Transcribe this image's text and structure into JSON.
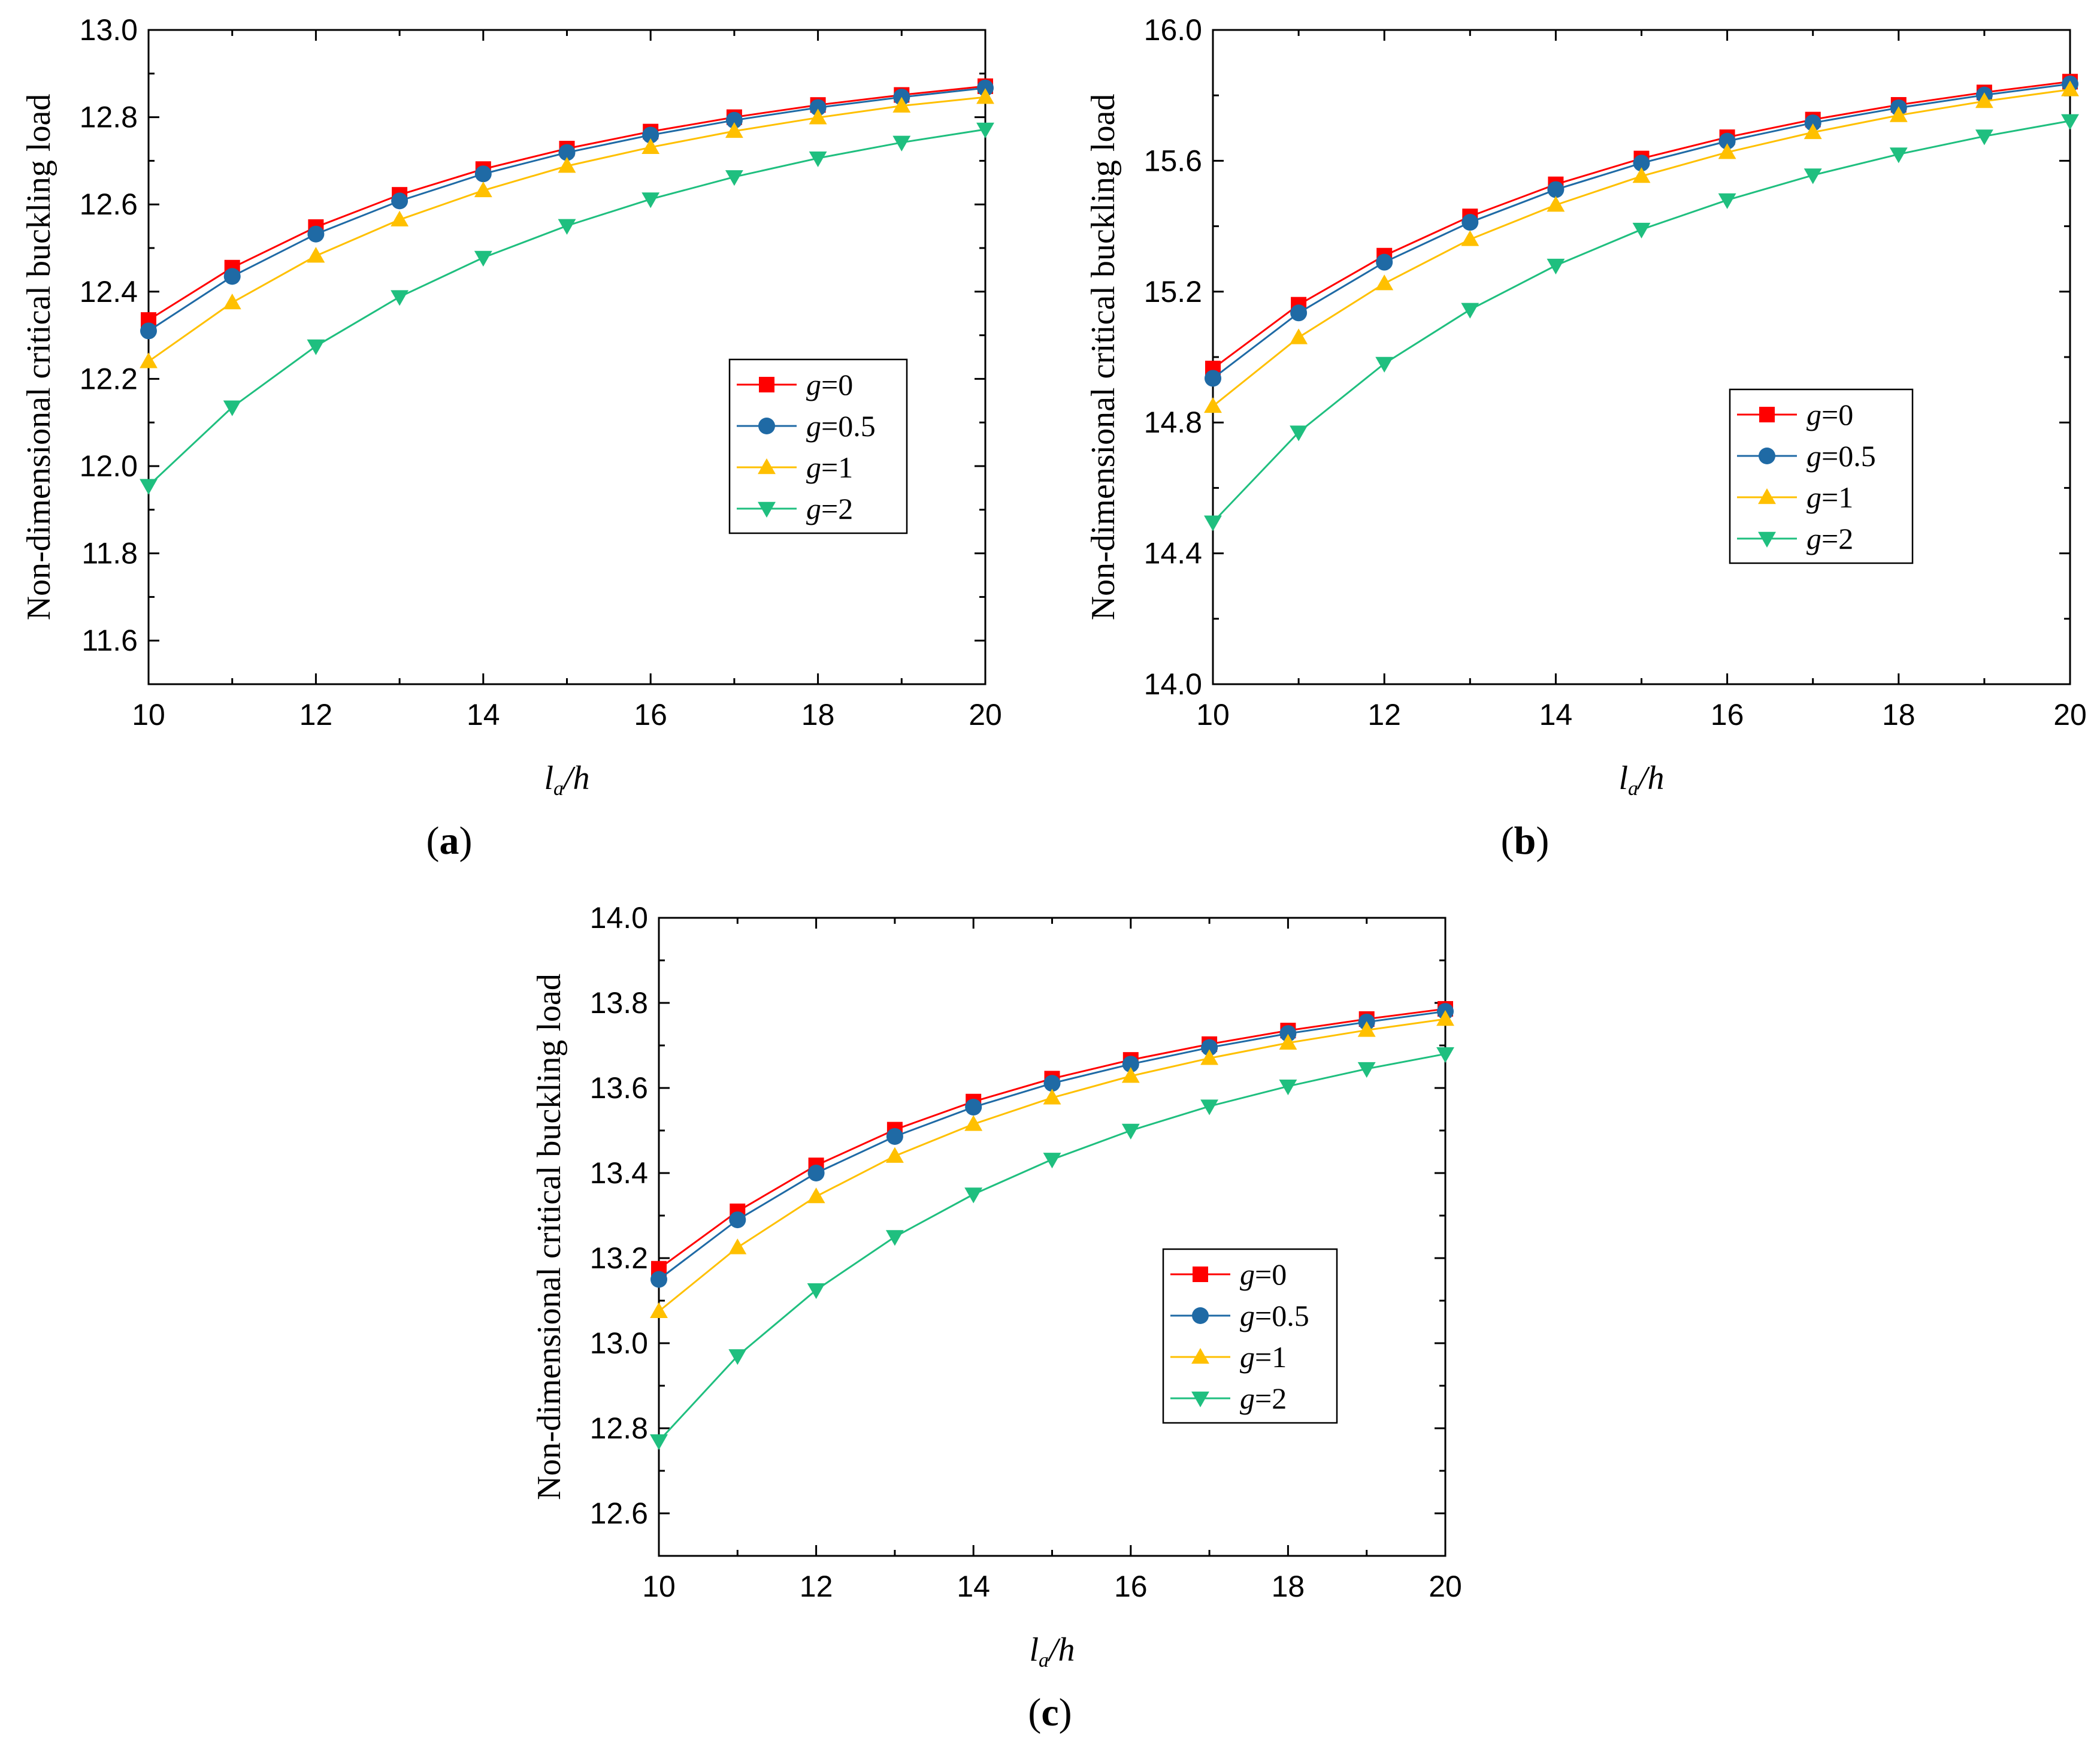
{
  "figure": {
    "panel_labels": [
      "a",
      "b",
      "c"
    ],
    "x_label": {
      "main": "l",
      "subscript": "a",
      "suffix": "/h"
    }
  },
  "colors": {
    "g0": "#ff0000",
    "g0_5": "#1f6aa5",
    "g1": "#ffc000",
    "g2": "#1fbf7f"
  },
  "chart_data": [
    {
      "type": "line",
      "panel": "a",
      "ylabel": "Non-dimensional critical buckling load",
      "xlabel": "la/h",
      "xlim": [
        10,
        20
      ],
      "ylim": [
        11.5,
        13.0
      ],
      "xticks": [
        10,
        12,
        14,
        16,
        18,
        20
      ],
      "yticks": [
        11.6,
        11.8,
        12.0,
        12.2,
        12.4,
        12.6,
        12.8,
        13.0
      ],
      "x": [
        10,
        11,
        12,
        13,
        14,
        15,
        16,
        17,
        18,
        19,
        20
      ],
      "legend_position": "center-right",
      "series": [
        {
          "name": "g=0",
          "prefix": "g",
          "suffix": "=0",
          "marker": "square",
          "color_key": "g0",
          "values": [
            12.335,
            12.455,
            12.548,
            12.622,
            12.681,
            12.728,
            12.767,
            12.8,
            12.828,
            12.851,
            12.871
          ]
        },
        {
          "name": "g=0.5",
          "prefix": "g",
          "suffix": "=0.5",
          "marker": "circle",
          "color_key": "g0_5",
          "values": [
            12.31,
            12.435,
            12.532,
            12.608,
            12.67,
            12.719,
            12.759,
            12.793,
            12.822,
            12.846,
            12.867
          ]
        },
        {
          "name": "g=1",
          "prefix": "g",
          "suffix": "=1",
          "marker": "triangle-up",
          "color_key": "g1",
          "values": [
            12.24,
            12.375,
            12.482,
            12.565,
            12.632,
            12.688,
            12.731,
            12.768,
            12.799,
            12.826,
            12.846
          ]
        },
        {
          "name": "g=2",
          "prefix": "g",
          "suffix": "=2",
          "marker": "triangle-down",
          "color_key": "g2",
          "values": [
            11.955,
            12.135,
            12.275,
            12.388,
            12.478,
            12.551,
            12.612,
            12.663,
            12.706,
            12.742,
            12.772
          ]
        }
      ]
    },
    {
      "type": "line",
      "panel": "b",
      "ylabel": "Non-dimensional critical buckling load",
      "xlabel": "la/h",
      "xlim": [
        10,
        20
      ],
      "ylim": [
        14.0,
        16.0
      ],
      "xticks": [
        10,
        12,
        14,
        16,
        18,
        20
      ],
      "yticks": [
        14.0,
        14.4,
        14.8,
        15.2,
        15.6,
        16.0
      ],
      "x": [
        10,
        11,
        12,
        13,
        14,
        15,
        16,
        17,
        18,
        19,
        20
      ],
      "legend_position": "center-right",
      "series": [
        {
          "name": "g=0",
          "prefix": "g",
          "suffix": "=0",
          "marker": "square",
          "color_key": "g0",
          "values": [
            14.965,
            15.16,
            15.31,
            15.43,
            15.528,
            15.607,
            15.672,
            15.726,
            15.771,
            15.809,
            15.842
          ]
        },
        {
          "name": "g=0.5",
          "prefix": "g",
          "suffix": "=0.5",
          "marker": "circle",
          "color_key": "g0_5",
          "values": [
            14.935,
            15.135,
            15.29,
            15.412,
            15.512,
            15.593,
            15.66,
            15.716,
            15.762,
            15.801,
            15.835
          ]
        },
        {
          "name": "g=1",
          "prefix": "g",
          "suffix": "=1",
          "marker": "triangle-up",
          "color_key": "g1",
          "values": [
            14.85,
            15.06,
            15.225,
            15.36,
            15.465,
            15.553,
            15.626,
            15.687,
            15.739,
            15.782,
            15.818
          ]
        },
        {
          "name": "g=2",
          "prefix": "g",
          "suffix": "=2",
          "marker": "triangle-down",
          "color_key": "g2",
          "values": [
            14.495,
            14.77,
            14.98,
            15.145,
            15.28,
            15.39,
            15.48,
            15.556,
            15.62,
            15.675,
            15.722
          ]
        }
      ]
    },
    {
      "type": "line",
      "panel": "c",
      "ylabel": "Non-dimensional critical buckling load",
      "xlabel": "la/h",
      "xlim": [
        10,
        20
      ],
      "ylim": [
        12.5,
        14.0
      ],
      "xticks": [
        10,
        12,
        14,
        16,
        18,
        20
      ],
      "yticks": [
        12.6,
        12.8,
        13.0,
        13.2,
        13.4,
        13.6,
        13.8,
        14.0
      ],
      "x": [
        10,
        11,
        12,
        13,
        14,
        15,
        16,
        17,
        18,
        19,
        20
      ],
      "legend_position": "center-right",
      "series": [
        {
          "name": "g=0",
          "prefix": "g",
          "suffix": "=0",
          "marker": "square",
          "color_key": "g0",
          "values": [
            13.175,
            13.31,
            13.418,
            13.502,
            13.568,
            13.622,
            13.666,
            13.703,
            13.735,
            13.762,
            13.786
          ]
        },
        {
          "name": "g=0.5",
          "prefix": "g",
          "suffix": "=0.5",
          "marker": "circle",
          "color_key": "g0_5",
          "values": [
            13.15,
            13.29,
            13.4,
            13.486,
            13.555,
            13.611,
            13.656,
            13.695,
            13.728,
            13.755,
            13.78
          ]
        },
        {
          "name": "g=1",
          "prefix": "g",
          "suffix": "=1",
          "marker": "triangle-up",
          "color_key": "g1",
          "values": [
            13.075,
            13.225,
            13.345,
            13.44,
            13.515,
            13.577,
            13.628,
            13.67,
            13.706,
            13.736,
            13.762
          ]
        },
        {
          "name": "g=2",
          "prefix": "g",
          "suffix": "=2",
          "marker": "triangle-down",
          "color_key": "g2",
          "values": [
            12.77,
            12.97,
            13.125,
            13.25,
            13.35,
            13.432,
            13.5,
            13.557,
            13.604,
            13.645,
            13.68
          ]
        }
      ]
    }
  ]
}
